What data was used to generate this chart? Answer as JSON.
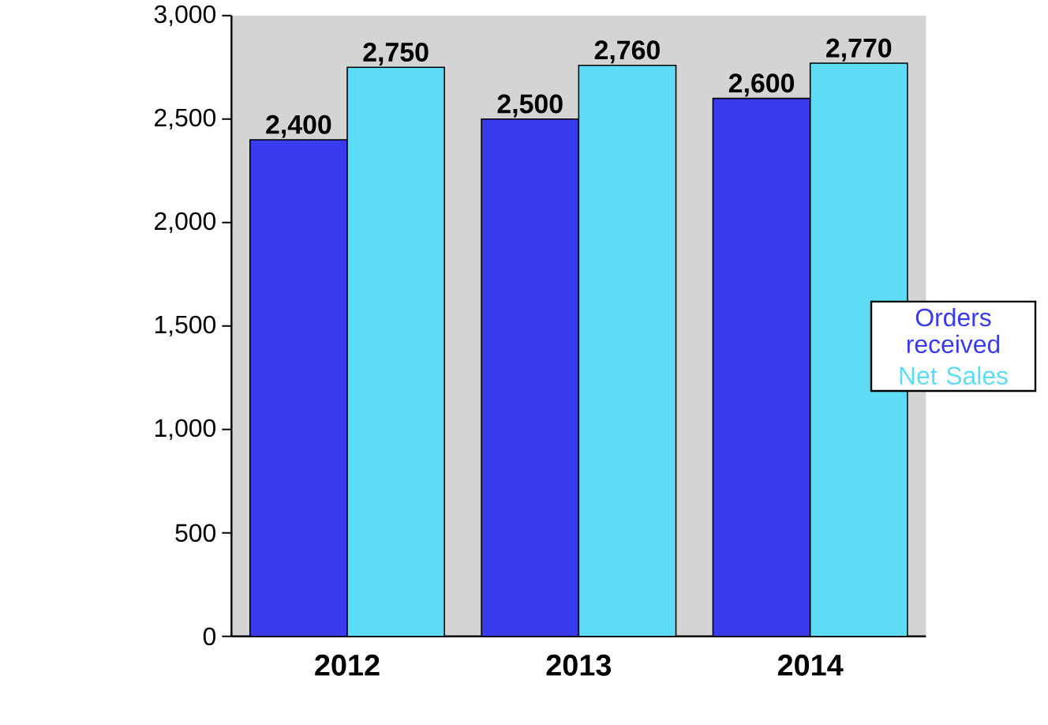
{
  "chart_data": {
    "type": "bar",
    "categories": [
      "2012",
      "2013",
      "2014"
    ],
    "series": [
      {
        "name": "Orders received",
        "color": "#3a3af0",
        "values": [
          2400,
          2500,
          2600
        ],
        "value_labels": [
          "2,400",
          "2,500",
          "2,600"
        ]
      },
      {
        "name": "Net Sales",
        "color": "#5fdcf5",
        "values": [
          2750,
          2760,
          2770
        ],
        "value_labels": [
          "2,750",
          "2,760",
          "2,770"
        ]
      }
    ],
    "ylim": [
      0,
      3000
    ],
    "yticks": [
      {
        "value": 0,
        "label": "0"
      },
      {
        "value": 500,
        "label": "500"
      },
      {
        "value": 1000,
        "label": "1,000"
      },
      {
        "value": 1500,
        "label": "1,500"
      },
      {
        "value": 2000,
        "label": "2,000"
      },
      {
        "value": 2500,
        "label": "2,500"
      },
      {
        "value": 3000,
        "label": "3,000"
      }
    ],
    "grid": false,
    "legend": "right"
  }
}
